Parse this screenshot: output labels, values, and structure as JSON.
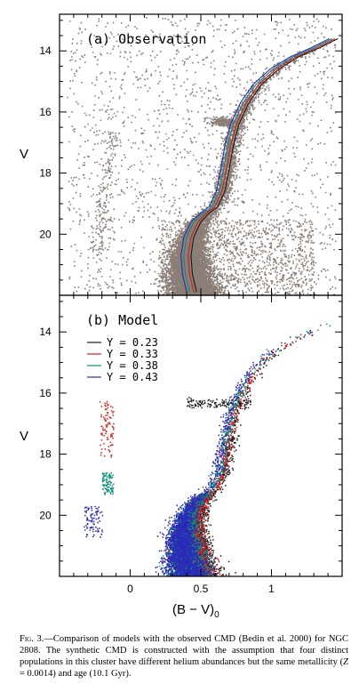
{
  "chart_data": [
    {
      "type": "scatter",
      "panel_label": "(a) Observation",
      "ylabel": "V",
      "xlim": [
        -0.5,
        1.5
      ],
      "ylim": [
        22.0,
        12.8
      ],
      "y_inverted": true,
      "yticks": [
        14,
        16,
        18,
        20
      ],
      "ytick_labels": [
        "14",
        "16",
        "18",
        "20"
      ],
      "point_color": "#8a7e77",
      "features": {
        "main_sequence_turnoff": {
          "x": 0.55,
          "y": 19.6
        },
        "red_clump": {
          "x": 0.65,
          "y": 16.3
        },
        "blue_horizontal_branch": {
          "x_range": [
            -0.2,
            0.0
          ],
          "y_range": [
            16.6,
            20.5
          ]
        }
      },
      "series": [
        {
          "name": "Y = 0.23",
          "color": "#1a1a1a",
          "x": [
            0.47,
            0.44,
            0.43,
            0.45,
            0.5,
            0.56,
            0.62,
            0.67,
            0.7,
            0.73,
            0.77,
            0.84,
            0.93,
            1.05,
            1.19,
            1.34,
            1.47
          ],
          "y": [
            21.9,
            21.3,
            20.7,
            20.1,
            19.6,
            19.3,
            19.1,
            18.6,
            17.9,
            17.1,
            16.4,
            15.7,
            15.1,
            14.6,
            14.2,
            13.9,
            13.6
          ]
        },
        {
          "name": "Y = 0.33",
          "color": "#d81b1b",
          "x": [
            0.45,
            0.42,
            0.41,
            0.43,
            0.48,
            0.54,
            0.6,
            0.65,
            0.68,
            0.71,
            0.75,
            0.82,
            0.91,
            1.03,
            1.17,
            1.32,
            1.45
          ],
          "y": [
            21.9,
            21.3,
            20.7,
            20.1,
            19.6,
            19.3,
            19.1,
            18.6,
            17.9,
            17.1,
            16.4,
            15.7,
            15.1,
            14.6,
            14.2,
            13.9,
            13.6
          ]
        },
        {
          "name": "Y = 0.38",
          "color": "#0e8f7a",
          "x": [
            0.42,
            0.39,
            0.38,
            0.4,
            0.45,
            0.52,
            0.58,
            0.63,
            0.66,
            0.69,
            0.73,
            0.8,
            0.89,
            1.01,
            1.15,
            1.3,
            1.43
          ],
          "y": [
            21.9,
            21.3,
            20.7,
            20.1,
            19.6,
            19.3,
            19.1,
            18.6,
            17.9,
            17.1,
            16.4,
            15.7,
            15.1,
            14.6,
            14.2,
            13.9,
            13.6
          ]
        },
        {
          "name": "Y = 0.43",
          "color": "#2a2ab8",
          "x": [
            0.4,
            0.37,
            0.36,
            0.38,
            0.43,
            0.5,
            0.56,
            0.61,
            0.64,
            0.67,
            0.71,
            0.78,
            0.87,
            0.99,
            1.13,
            1.28,
            1.41
          ],
          "y": [
            21.9,
            21.3,
            20.7,
            20.1,
            19.6,
            19.3,
            19.1,
            18.6,
            17.9,
            17.1,
            16.4,
            15.7,
            15.1,
            14.6,
            14.2,
            13.9,
            13.6
          ]
        }
      ]
    },
    {
      "type": "scatter",
      "panel_label": "(b) Model",
      "ylabel": "V",
      "xlabel": "(B − V)",
      "xlabel_subscript": "0",
      "xlim": [
        -0.5,
        1.5
      ],
      "ylim": [
        22.0,
        12.8
      ],
      "y_inverted": true,
      "xticks": [
        0,
        0.5,
        1
      ],
      "xtick_labels": [
        "0",
        "0.5",
        "1"
      ],
      "yticks": [
        14,
        16,
        18,
        20
      ],
      "ytick_labels": [
        "14",
        "16",
        "18",
        "20"
      ],
      "legend": [
        {
          "label": "Y  =  0.23",
          "color": "#1a1a1a"
        },
        {
          "label": "Y  =  0.33",
          "color": "#d81b1b"
        },
        {
          "label": "Y  =  0.38",
          "color": "#0e8f7a"
        },
        {
          "label": "Y  =  0.43",
          "color": "#2a2ab8"
        }
      ],
      "legend_placement": "upper-left",
      "series": [
        {
          "name": "Y = 0.23",
          "color": "#1a1a1a",
          "hb": {
            "x": [
              0.4,
              0.85
            ],
            "y": [
              16.2,
              16.45
            ]
          }
        },
        {
          "name": "Y = 0.33",
          "color": "#d81b1b",
          "hb": {
            "x": [
              -0.22,
              -0.12
            ],
            "y": [
              16.3,
              18.1
            ]
          }
        },
        {
          "name": "Y = 0.38",
          "color": "#0e8f7a",
          "hb": {
            "x": [
              -0.2,
              -0.12
            ],
            "y": [
              18.6,
              19.3
            ]
          }
        },
        {
          "name": "Y = 0.43",
          "color": "#2a2ab8",
          "hb": {
            "x": [
              -0.33,
              -0.2
            ],
            "y": [
              19.7,
              20.7
            ]
          }
        }
      ]
    }
  ],
  "caption": {
    "fig_label": "Fig. 3.",
    "text_1": "—Comparison of models with the observed CMD (Bedin et al. 2000) for NGC 2808. The synthetic CMD is constructed with the assumption that four distinct populations in this cluster have different helium abundances but the same metallicity (",
    "z_symbol": "Z",
    "text_2": " = 0.0014) and age (10.1 Gyr)."
  }
}
